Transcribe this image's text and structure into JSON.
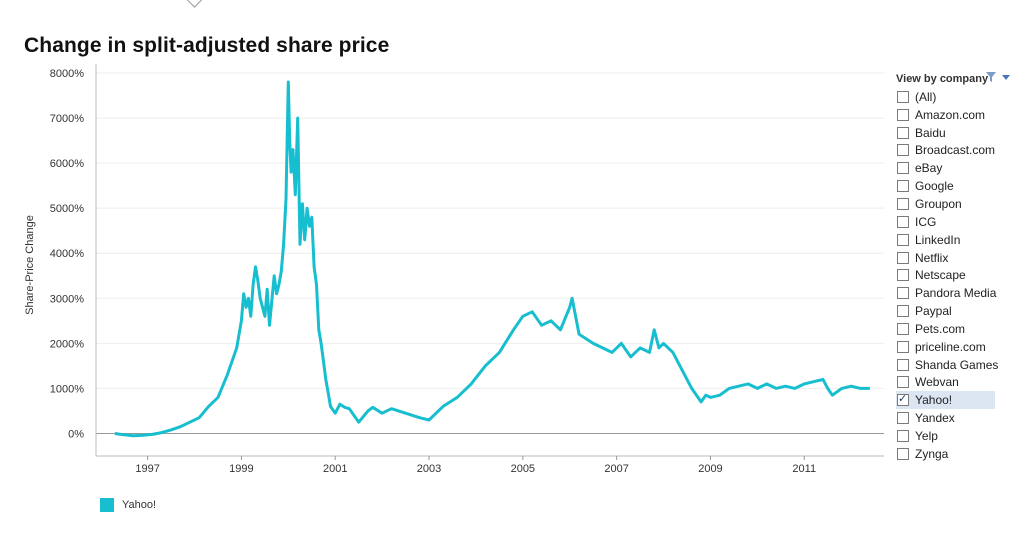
{
  "title": "Change in split-adjusted share price",
  "filter": {
    "header": "View by company",
    "items": [
      {
        "label": "(All)",
        "checked": false
      },
      {
        "label": "Amazon.com",
        "checked": false
      },
      {
        "label": "Baidu",
        "checked": false
      },
      {
        "label": "Broadcast.com",
        "checked": false
      },
      {
        "label": "eBay",
        "checked": false
      },
      {
        "label": "Google",
        "checked": false
      },
      {
        "label": "Groupon",
        "checked": false
      },
      {
        "label": "ICG",
        "checked": false
      },
      {
        "label": "LinkedIn",
        "checked": false
      },
      {
        "label": "Netflix",
        "checked": false
      },
      {
        "label": "Netscape",
        "checked": false
      },
      {
        "label": "Pandora Media",
        "checked": false
      },
      {
        "label": "Paypal",
        "checked": false
      },
      {
        "label": "Pets.com",
        "checked": false
      },
      {
        "label": "priceline.com",
        "checked": false
      },
      {
        "label": "Shanda Games",
        "checked": false
      },
      {
        "label": "Webvan",
        "checked": false
      },
      {
        "label": "Yahoo!",
        "checked": true
      },
      {
        "label": "Yandex",
        "checked": false
      },
      {
        "label": "Yelp",
        "checked": false
      },
      {
        "label": "Zynga",
        "checked": false
      }
    ]
  },
  "legend": [
    {
      "label": "Yahoo!",
      "color": "#17becf"
    }
  ],
  "chart_data": {
    "type": "line",
    "title": "Change in split-adjusted share price",
    "xlabel": "",
    "ylabel": "Share-Price Change",
    "xlim": [
      1995.9,
      2012.7
    ],
    "ylim": [
      -500,
      8200
    ],
    "yticks": [
      0,
      1000,
      2000,
      3000,
      4000,
      5000,
      6000,
      7000,
      8000
    ],
    "ytick_labels": [
      "0%",
      "1000%",
      "2000%",
      "3000%",
      "4000%",
      "5000%",
      "6000%",
      "7000%",
      "8000%"
    ],
    "xticks": [
      1997,
      1999,
      2001,
      2003,
      2005,
      2007,
      2009,
      2011
    ],
    "xtick_labels": [
      "1997",
      "1999",
      "2001",
      "2003",
      "2005",
      "2007",
      "2009",
      "2011"
    ],
    "grid": true,
    "legend_position": "bottom-left",
    "series": [
      {
        "name": "Yahoo!",
        "color": "#17becf",
        "x": [
          1996.3,
          1996.5,
          1996.7,
          1996.9,
          1997.1,
          1997.3,
          1997.5,
          1997.7,
          1997.9,
          1998.1,
          1998.3,
          1998.5,
          1998.7,
          1998.9,
          1999.0,
          1999.05,
          1999.1,
          1999.15,
          1999.2,
          1999.25,
          1999.3,
          1999.35,
          1999.4,
          1999.5,
          1999.55,
          1999.6,
          1999.7,
          1999.75,
          1999.8,
          1999.85,
          1999.9,
          1999.95,
          2000.0,
          2000.03,
          2000.06,
          2000.1,
          2000.15,
          2000.2,
          2000.25,
          2000.3,
          2000.35,
          2000.4,
          2000.45,
          2000.5,
          2000.55,
          2000.6,
          2000.65,
          2000.7,
          2000.75,
          2000.8,
          2000.85,
          2000.9,
          2001.0,
          2001.1,
          2001.2,
          2001.3,
          2001.5,
          2001.7,
          2001.8,
          2002.0,
          2002.2,
          2002.5,
          2002.8,
          2003.0,
          2003.3,
          2003.6,
          2003.9,
          2004.2,
          2004.5,
          2004.8,
          2005.0,
          2005.2,
          2005.4,
          2005.6,
          2005.8,
          2006.0,
          2006.05,
          2006.2,
          2006.5,
          2006.7,
          2006.9,
          2007.1,
          2007.3,
          2007.5,
          2007.7,
          2007.8,
          2007.9,
          2008.0,
          2008.2,
          2008.4,
          2008.6,
          2008.8,
          2008.9,
          2009.0,
          2009.2,
          2009.4,
          2009.6,
          2009.8,
          2010.0,
          2010.2,
          2010.4,
          2010.6,
          2010.8,
          2011.0,
          2011.2,
          2011.4,
          2011.5,
          2011.6,
          2011.8,
          2012.0,
          2012.2,
          2012.4
        ],
        "values": [
          0,
          -30,
          -50,
          -40,
          -20,
          20,
          80,
          150,
          250,
          350,
          600,
          800,
          1300,
          1900,
          2500,
          3100,
          2800,
          3000,
          2600,
          3300,
          3700,
          3400,
          3000,
          2600,
          3200,
          2400,
          3500,
          3100,
          3300,
          3600,
          4200,
          5200,
          7800,
          6500,
          5800,
          6300,
          5300,
          7000,
          4200,
          5100,
          4300,
          5000,
          4600,
          4800,
          3700,
          3300,
          2300,
          2000,
          1600,
          1200,
          900,
          600,
          450,
          650,
          580,
          550,
          250,
          500,
          580,
          450,
          550,
          450,
          350,
          300,
          600,
          800,
          1100,
          1500,
          1800,
          2300,
          2600,
          2700,
          2400,
          2500,
          2300,
          2800,
          3000,
          2200,
          2000,
          1900,
          1800,
          2000,
          1700,
          1900,
          1800,
          2300,
          1900,
          2000,
          1800,
          1400,
          1000,
          700,
          850,
          800,
          850,
          1000,
          1050,
          1100,
          1000,
          1100,
          1000,
          1050,
          1000,
          1100,
          1150,
          1200,
          1000,
          850,
          1000,
          1050,
          1000,
          1000
        ]
      }
    ]
  }
}
